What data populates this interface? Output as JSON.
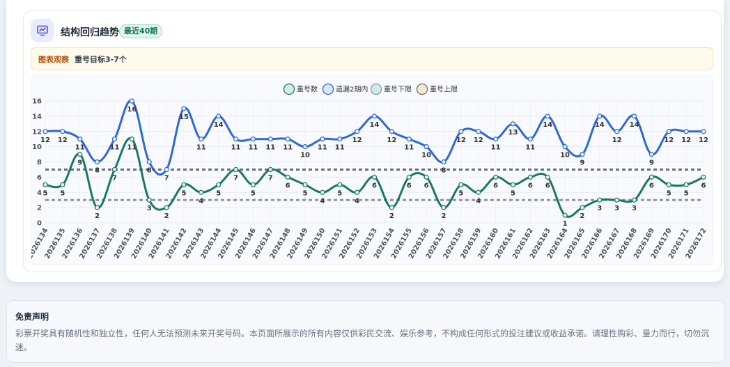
{
  "card": {
    "title": "结构回归趋势",
    "badge": "最近40期",
    "icon": "chart-line-icon",
    "observation_label": "图表观察",
    "observation_text": "重号目标3-7个"
  },
  "disclaimer": {
    "title": "免责声明",
    "text": "彩票开奖具有随机性和独立性，任何人无法预测未来开奖号码。本页面所展示的所有内容仅供彩民交流、娱乐参考，不构成任何形式的投注建议或收益承诺。请理性购彩、量力而行，切勿沉迷。"
  },
  "colors": {
    "repeat": "#187866",
    "missed": "#2f66dc",
    "lower": "#8d91b6",
    "upper": "#676c86",
    "accent": "#4f46e5"
  },
  "chart_data": {
    "type": "line",
    "categories": [
      "2026134",
      "2026135",
      "2026136",
      "2026137",
      "2026138",
      "2026139",
      "2026140",
      "2026141",
      "2026142",
      "2026143",
      "2026144",
      "2026145",
      "2026146",
      "2026147",
      "2026148",
      "2026149",
      "2026150",
      "2026151",
      "2026152",
      "2026153",
      "2026154",
      "2026155",
      "2026156",
      "2026157",
      "2026158",
      "2026159",
      "2026160",
      "2026161",
      "2026162",
      "2026163",
      "2026164",
      "2026165",
      "2026166",
      "2026167",
      "2026168",
      "2026169",
      "2026170",
      "2026171",
      "2026172"
    ],
    "series": [
      {
        "name": "重号数",
        "values": [
          5,
          5,
          9,
          2,
          7,
          11,
          3,
          2,
          5,
          4,
          5,
          7,
          5,
          7,
          6,
          5,
          4,
          5,
          4,
          6,
          2,
          6,
          6,
          2,
          5,
          4,
          6,
          5,
          6,
          6,
          1,
          2,
          3,
          3,
          3,
          6,
          5,
          5,
          6
        ]
      },
      {
        "name": "遗漏2期内",
        "values": [
          12,
          12,
          11,
          8,
          11,
          16,
          8,
          7,
          15,
          11,
          14,
          11,
          11,
          11,
          11,
          10,
          11,
          11,
          12,
          14,
          12,
          11,
          10,
          8,
          12,
          12,
          11,
          13,
          11,
          14,
          10,
          9,
          14,
          12,
          14,
          9,
          12,
          12,
          12
        ]
      },
      {
        "name": "重号下限",
        "values": [
          3,
          3,
          3,
          3,
          3,
          3,
          3,
          3,
          3,
          3,
          3,
          3,
          3,
          3,
          3,
          3,
          3,
          3,
          3,
          3,
          3,
          3,
          3,
          3,
          3,
          3,
          3,
          3,
          3,
          3,
          3,
          3,
          3,
          3,
          3,
          3,
          3,
          3,
          3
        ]
      },
      {
        "name": "重号上限",
        "values": [
          7,
          7,
          7,
          7,
          7,
          7,
          7,
          7,
          7,
          7,
          7,
          7,
          7,
          7,
          7,
          7,
          7,
          7,
          7,
          7,
          7,
          7,
          7,
          7,
          7,
          7,
          7,
          7,
          7,
          7,
          7,
          7,
          7,
          7,
          7,
          7,
          7,
          7,
          7
        ]
      }
    ],
    "ylim": [
      0,
      16
    ],
    "yticks": [
      0,
      2,
      4,
      6,
      8,
      10,
      12,
      14,
      16
    ],
    "legend_position": "top-center",
    "grid": true
  }
}
